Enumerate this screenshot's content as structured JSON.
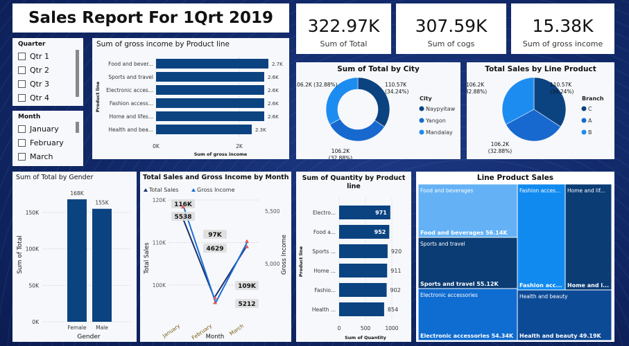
{
  "header": {
    "title": "Sales Report For 1Qrt 2019"
  },
  "kpis": [
    {
      "value": "322.97K",
      "label": "Sum of Total"
    },
    {
      "value": "307.59K",
      "label": "Sum of cogs"
    },
    {
      "value": "15.38K",
      "label": "Sum of gross income"
    }
  ],
  "slicers": {
    "quarter": {
      "title": "Quarter",
      "items": [
        "Qtr 1",
        "Qtr 2",
        "Qtr 3",
        "Qtr 4"
      ]
    },
    "month": {
      "title": "Month",
      "items": [
        "January",
        "February",
        "March"
      ]
    }
  },
  "colors": {
    "navy": "#0b4381",
    "mid": "#1769d0",
    "light": "#1d8cf0",
    "pale": "#64b2f5"
  },
  "chart_data": [
    {
      "id": "gross",
      "type": "bar",
      "orientation": "horizontal",
      "title": "Sum of gross income by Product line",
      "xlabel": "Sum of gross income",
      "ylabel": "Product line",
      "categories": [
        "Food and bever...",
        "Sports and travel",
        "Electronic acces...",
        "Fashion access...",
        "Home and lifes...",
        "Health and bea..."
      ],
      "values": [
        2700,
        2600,
        2600,
        2600,
        2600,
        2300
      ],
      "data_labels": [
        "2.7K",
        "2.6K",
        "2.6K",
        "2.6K",
        "2.6K",
        "2.3K"
      ],
      "ticks": [
        "0K",
        "2K"
      ],
      "xlim": [
        0,
        2000
      ],
      "grid": true
    },
    {
      "id": "city",
      "type": "pie",
      "style": "donut",
      "title": "Sum of Total by City",
      "legend_title": "City",
      "legend_position": "right",
      "categories": [
        "Naypyitaw",
        "Yangon",
        "Mandalay"
      ],
      "values": [
        110.57,
        106.2,
        106.2
      ],
      "percents": [
        34.24,
        32.88,
        32.88
      ],
      "data_labels": [
        "110.57K\n(34.24%)",
        "106.2K (32.88%)",
        "106.2K\n(32.88%)"
      ]
    },
    {
      "id": "branch",
      "type": "pie",
      "title": "Total Sales by Line Product",
      "legend_title": "Branch",
      "legend_position": "right",
      "categories": [
        "C",
        "A",
        "B"
      ],
      "values": [
        110.57,
        106.2,
        106.2
      ],
      "percents": [
        34.24,
        32.88,
        32.88
      ],
      "data_labels": [
        "110.57K\n(34.24%)",
        "106.2K\n(32.88%)",
        "106.2K\n(32.88%)"
      ]
    },
    {
      "id": "gender",
      "type": "bar",
      "title": "Sum of Total by Gender",
      "xlabel": "Gender",
      "ylabel": "Sum of Total",
      "categories": [
        "Female",
        "Male"
      ],
      "values": [
        168000,
        155000
      ],
      "data_labels": [
        "168K",
        "155K"
      ],
      "ticks": [
        "0K",
        "50K",
        "100K",
        "150K"
      ],
      "ylim": [
        0,
        150000
      ],
      "grid": true
    },
    {
      "id": "month",
      "type": "line",
      "title": "Total Sales and Gross Income by Month",
      "xlabel": "Month",
      "ylabel": "Total Sales",
      "y2label": "Gross Income",
      "legend_position": "top-left",
      "categories": [
        "January",
        "February",
        "March"
      ],
      "series": [
        {
          "name": "Total Sales",
          "values": [
            116000,
            97000,
            109000
          ],
          "data_labels": [
            "116K",
            "97K",
            "109K"
          ],
          "axis": "left"
        },
        {
          "name": "Gross Income",
          "values": [
            5538,
            4629,
            5212
          ],
          "data_labels": [
            "5538",
            "4629",
            "5212"
          ],
          "axis": "right"
        }
      ],
      "ticks": [
        "100K",
        "110K",
        "120K"
      ],
      "ticks2": [
        "5,000",
        "5,500"
      ],
      "grid": true
    },
    {
      "id": "quantity",
      "type": "bar",
      "orientation": "horizontal",
      "title": "Sum of Quantity by Product line",
      "xlabel": "Sum of Quantity",
      "ylabel": "Product line",
      "categories": [
        "Electro...",
        "Food a...",
        "Sports ...",
        "Home ...",
        "Fashio...",
        "Health ..."
      ],
      "values": [
        971,
        952,
        920,
        911,
        902,
        854
      ],
      "ticks": [
        "0",
        "500",
        "1000"
      ],
      "xlim": [
        0,
        1000
      ],
      "grid": true
    },
    {
      "id": "treemap",
      "type": "treemap",
      "title": "Line Product Sales",
      "items": [
        {
          "label": "Food and beverages",
          "value_label": "Food and beverages 56.14K",
          "value": 56.14
        },
        {
          "label": "Sports and travel",
          "value_label": "Sports and travel 55.12K",
          "value": 55.12
        },
        {
          "label": "Electronic accessories",
          "value_label": "Electronic accessories 54.34K",
          "value": 54.34
        },
        {
          "label": "Fashion acces...",
          "value_label": "Fashion acc..."
        },
        {
          "label": "Home and lif...",
          "value_label": "Home and l..."
        },
        {
          "label": "Health and beauty",
          "value_label": "Health and beauty 49.19K",
          "value": 49.19
        }
      ]
    }
  ]
}
